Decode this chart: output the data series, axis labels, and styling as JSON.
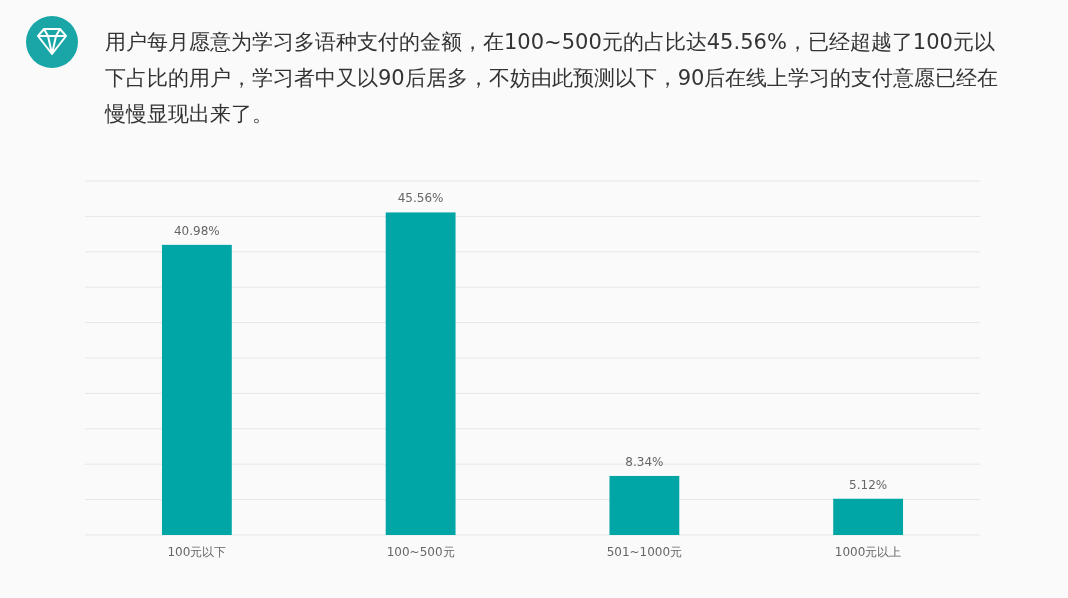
{
  "chart_data": {
    "type": "bar",
    "title": "用户每月愿意为学习多语种支付的金额，在100~500元的占比达45.56%，已经超越了100元以下占比的用户，学习者中又以90后居多，不妨由此预测以下，90后在线上学习的支付意愿已经在慢慢显现出来了。",
    "categories": [
      "100元以下",
      "100~500元",
      "501~1000元",
      "1000元以上"
    ],
    "values": [
      40.98,
      45.56,
      8.34,
      5.12
    ],
    "value_labels": [
      "40.98%",
      "45.56%",
      "8.34%",
      "5.12%"
    ],
    "color": "#00a6a6",
    "ylim": [
      0,
      50
    ],
    "yticks": [
      0,
      5,
      10,
      15,
      20,
      25,
      30,
      35,
      40,
      45,
      50
    ],
    "tick_labels": "x",
    "grid": "y"
  }
}
